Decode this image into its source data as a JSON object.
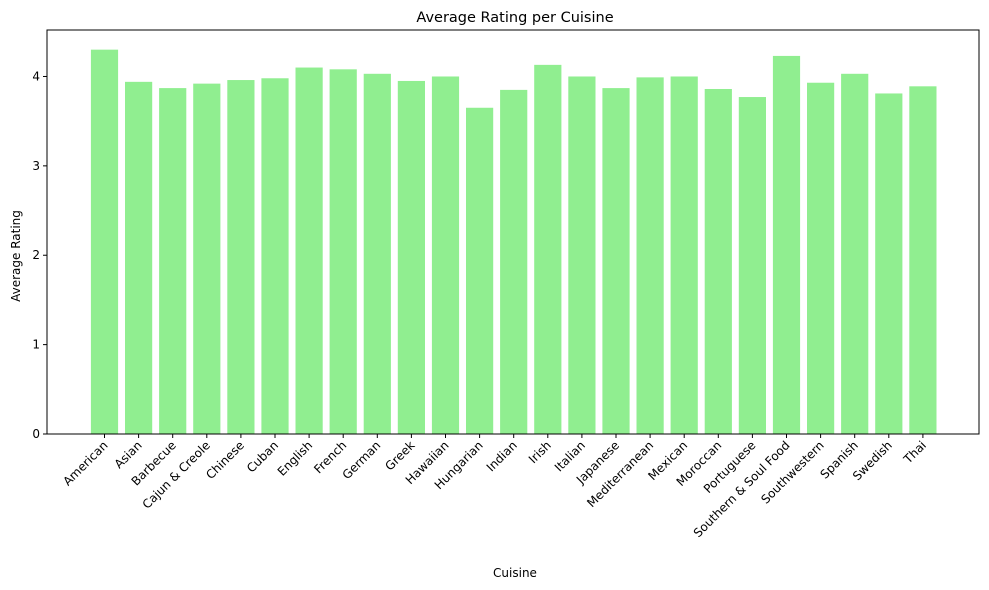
{
  "chart_data": {
    "type": "bar",
    "title": "Average Rating per Cuisine",
    "xlabel": "Cuisine",
    "ylabel": "Average Rating",
    "categories": [
      "American",
      "Asian",
      "Barbecue",
      "Cajun & Creole",
      "Chinese",
      "Cuban",
      "English",
      "French",
      "German",
      "Greek",
      "Hawaiian",
      "Hungarian",
      "Indian",
      "Irish",
      "Italian",
      "Japanese",
      "Mediterranean",
      "Mexican",
      "Moroccan",
      "Portuguese",
      "Southern & Soul Food",
      "Southwestern",
      "Spanish",
      "Swedish",
      "Thai"
    ],
    "values": [
      4.3,
      3.94,
      3.87,
      3.92,
      3.96,
      3.98,
      4.1,
      4.08,
      4.03,
      3.95,
      4.0,
      3.65,
      3.85,
      4.13,
      4.0,
      3.87,
      3.99,
      4.0,
      3.86,
      3.77,
      4.23,
      3.93,
      4.03,
      3.81,
      3.89
    ],
    "ylim": [
      0,
      4.52
    ],
    "yticks": [
      "0",
      "1",
      "2",
      "3",
      "4"
    ],
    "bar_color": "#90ee90",
    "grid": false,
    "legend": "none"
  }
}
